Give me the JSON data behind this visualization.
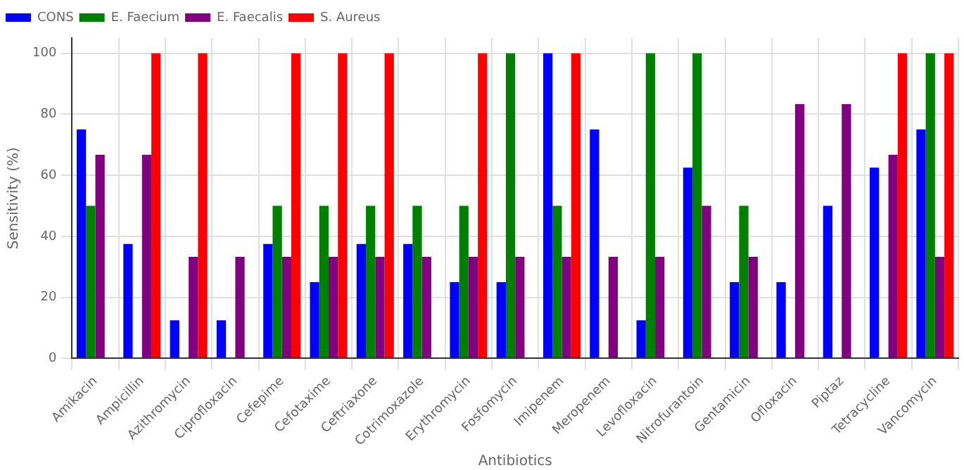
{
  "chart_data": {
    "type": "bar",
    "xlabel": "Antibiotics",
    "ylabel": "Sensitivity (%)",
    "categories": [
      "Amikacin",
      "Ampicillin",
      "Azithromycin",
      "Ciprofloxacin",
      "Cefepime",
      "Cefotaxime",
      "Ceftriaxone",
      "Cotrimoxazole",
      "Erythromycin",
      "Fosfomycin",
      "Imipenem",
      "Meropenem",
      "Levofloxacin",
      "Nitrofurantoin",
      "Gentamicin",
      "Ofloxacin",
      "Piptaz",
      "Tetracycline",
      "Vancomycin"
    ],
    "series": [
      {
        "name": "CONS",
        "color": "#0000ff",
        "values": [
          75,
          37.5,
          12.5,
          12.5,
          37.5,
          25,
          37.5,
          37.5,
          25,
          25,
          100,
          75,
          12.5,
          62.5,
          25,
          25,
          50,
          62.5,
          75
        ]
      },
      {
        "name": "E. Faecium",
        "color": "#008000",
        "values": [
          50,
          0,
          0,
          0,
          50,
          50,
          50,
          50,
          50,
          100,
          50,
          0,
          100,
          100,
          50,
          0,
          0,
          0,
          100
        ]
      },
      {
        "name": "E. Faecalis",
        "color": "#800080",
        "values": [
          66.7,
          66.7,
          33.3,
          33.3,
          33.3,
          33.3,
          33.3,
          33.3,
          33.3,
          33.3,
          33.3,
          33.3,
          33.3,
          50,
          33.3,
          83.3,
          83.3,
          66.7,
          33.3
        ]
      },
      {
        "name": "S. Aureus",
        "color": "#ff0000",
        "values": [
          0,
          100,
          100,
          0,
          100,
          100,
          100,
          0,
          100,
          0,
          100,
          0,
          0,
          0,
          0,
          0,
          0,
          100,
          100
        ]
      }
    ],
    "ylim": [
      0,
      105
    ],
    "yticks": [
      0,
      20,
      40,
      60,
      80,
      100
    ],
    "grid": true,
    "legend": "top left"
  }
}
